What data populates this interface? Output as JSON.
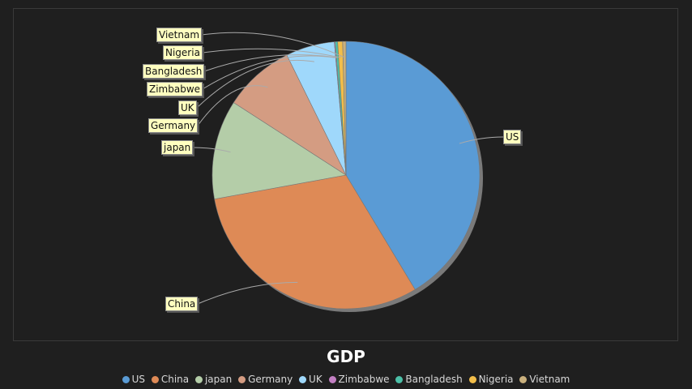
{
  "chart_data": {
    "type": "pie",
    "title": "GDP",
    "categories": [
      "US",
      "China",
      "japan",
      "Germany",
      "UK",
      "Zimbabwe",
      "Bangladesh",
      "Nigeria",
      "Vietnam"
    ],
    "values": [
      41.4,
      30.8,
      12.0,
      8.6,
      5.9,
      0.1,
      0.3,
      0.6,
      0.4
    ],
    "colors": [
      "#5a9bd5",
      "#de8a56",
      "#b4cda8",
      "#d49c82",
      "#9fd8fb",
      "#c27fc2",
      "#4cc0a8",
      "#f2be4a",
      "#c9b07d"
    ],
    "legend_position": "bottom",
    "labels": [
      "US",
      "China",
      "japan",
      "Germany",
      "UK",
      "Zimbabwe",
      "Bangladesh",
      "Nigeria",
      "Vietnam"
    ]
  },
  "title": "GDP",
  "legend": [
    {
      "label": "US",
      "color": "#5a9bd5"
    },
    {
      "label": "China",
      "color": "#de8a56"
    },
    {
      "label": "japan",
      "color": "#b4cda8"
    },
    {
      "label": "Germany",
      "color": "#d49c82"
    },
    {
      "label": "UK",
      "color": "#9fd8fb"
    },
    {
      "label": "Zimbabwe",
      "color": "#c27fc2"
    },
    {
      "label": "Bangladesh",
      "color": "#4cc0a8"
    },
    {
      "label": "Nigeria",
      "color": "#f2be4a"
    },
    {
      "label": "Vietnam",
      "color": "#c9b07d"
    }
  ],
  "slice_labels": {
    "us": "US",
    "china": "China",
    "japan": "japan",
    "germany": "Germany",
    "uk": "UK",
    "zimbabwe": "Zimbabwe",
    "bangladesh": "Bangladesh",
    "nigeria": "Nigeria",
    "vietnam": "Vietnam"
  }
}
